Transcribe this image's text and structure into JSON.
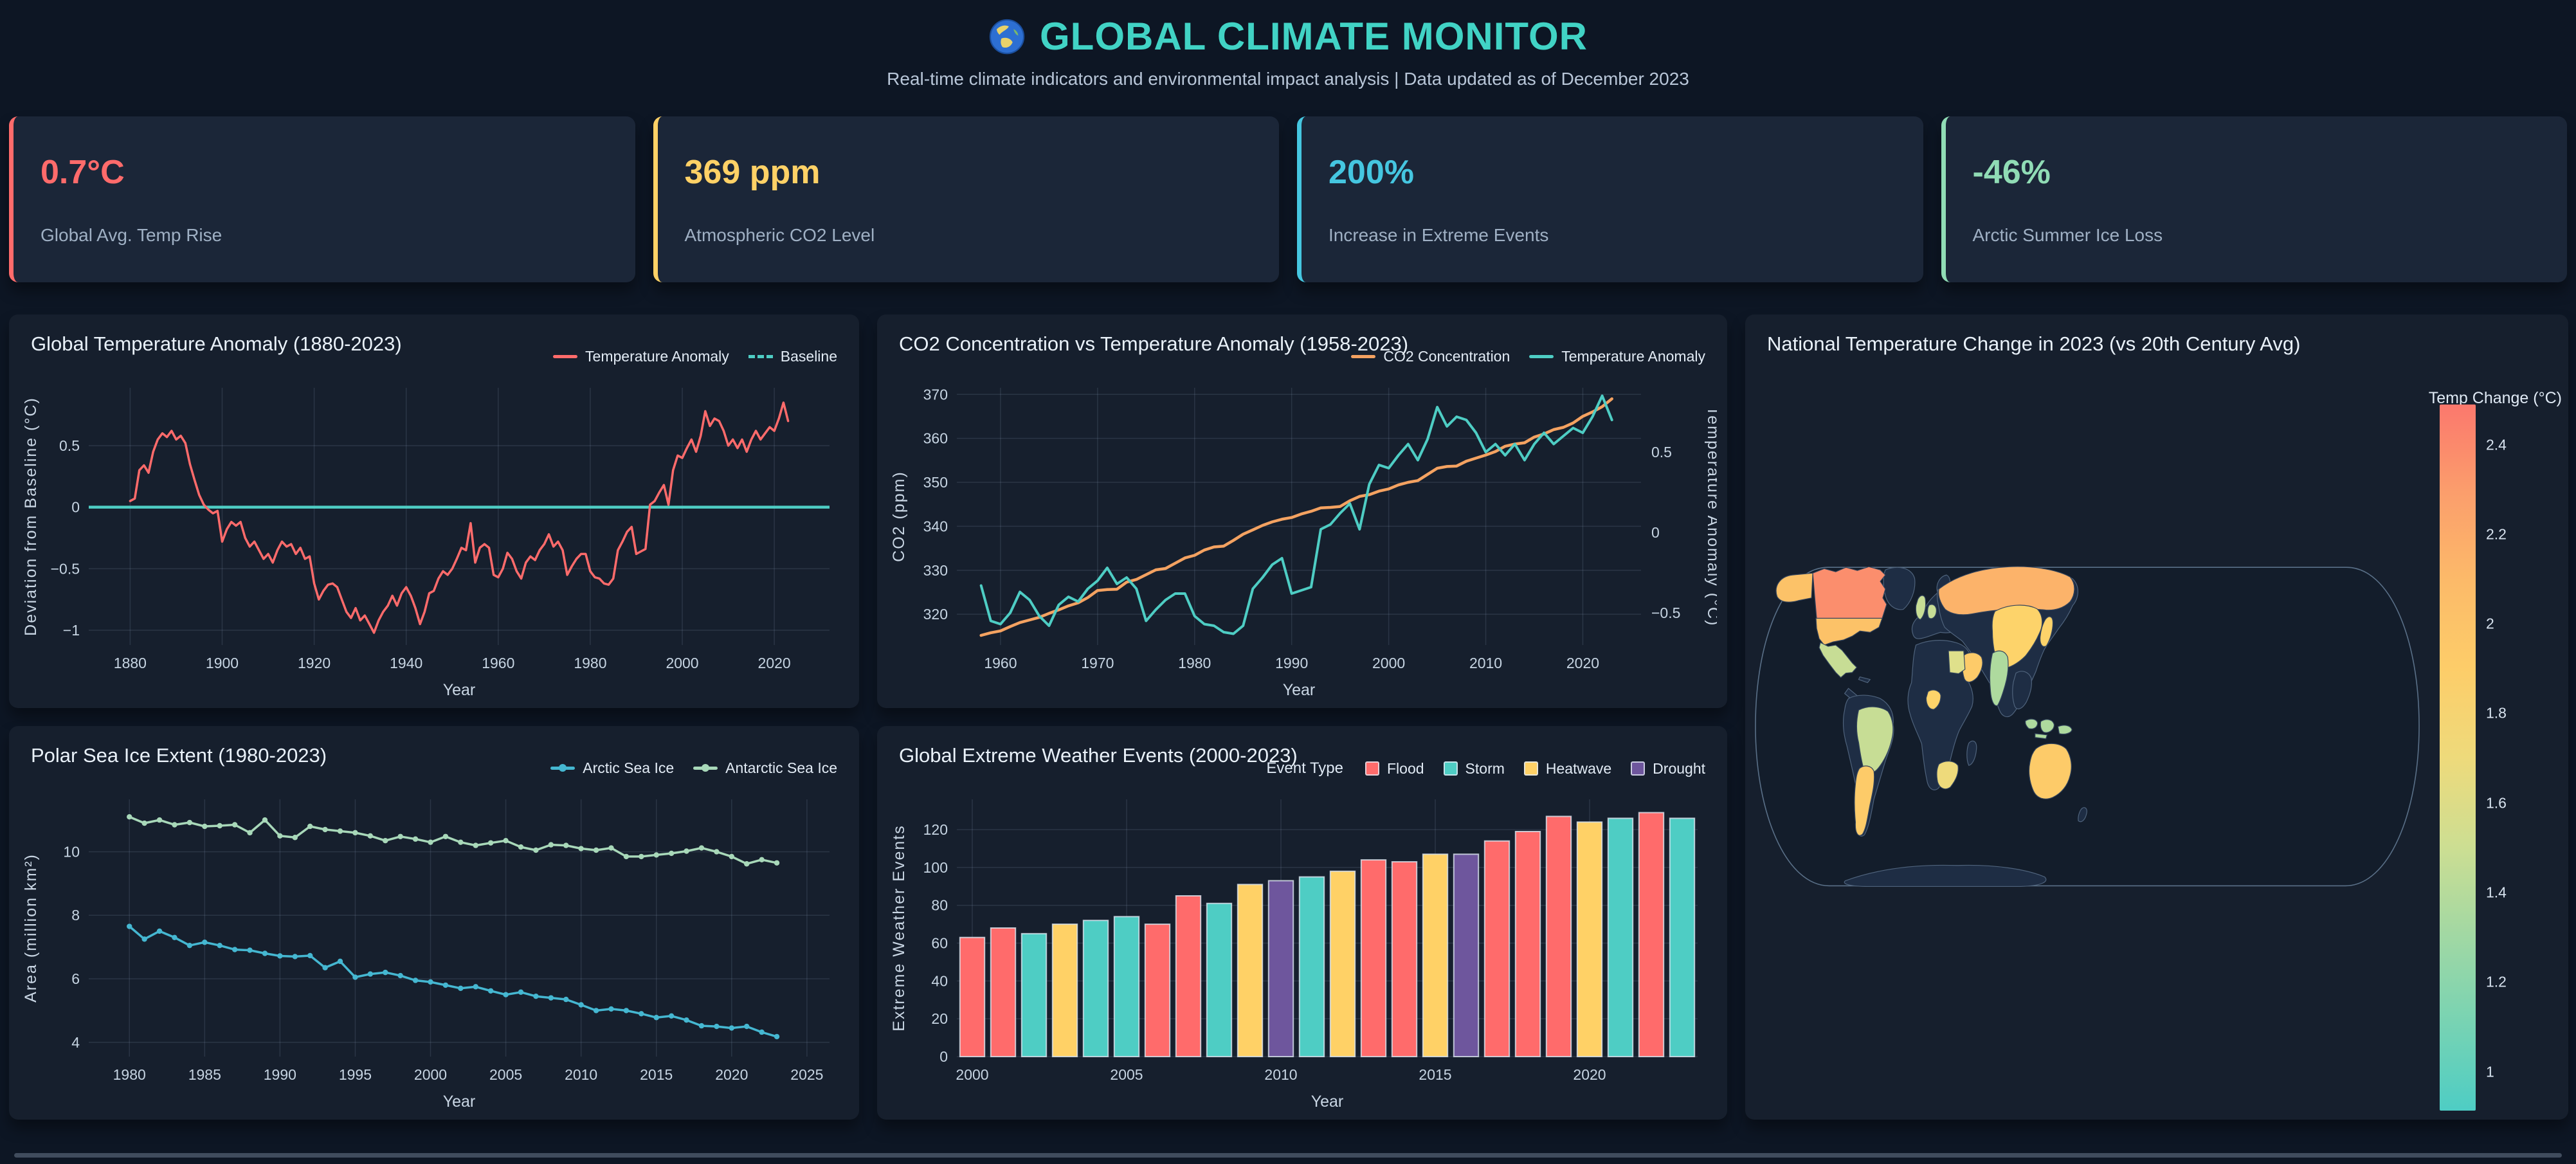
{
  "header": {
    "icon": "globe",
    "title": "GLOBAL CLIMATE MONITOR",
    "subtitle": "Real-time climate indicators and environmental impact analysis | Data updated as of December 2023"
  },
  "stats": [
    {
      "value": "0.7°C",
      "label": "Global Avg. Temp Rise",
      "color": "#ff6b6b"
    },
    {
      "value": "369 ppm",
      "label": "Atmospheric CO2 Level",
      "color": "#ffd166"
    },
    {
      "value": "200%",
      "label": "Increase in Extreme Events",
      "color": "#45c6e0"
    },
    {
      "value": "-46%",
      "label": "Arctic Summer Ice Loss",
      "color": "#90dcb5"
    }
  ],
  "chart_data": {
    "temp_anomaly": {
      "type": "line",
      "title": "Global Temperature Anomaly (1880-2023)",
      "xlabel": "Year",
      "ylabel": "Deviation from Baseline (°C)",
      "legend": [
        {
          "label": "Temperature Anomaly",
          "color": "#ff6b6b",
          "style": "solid"
        },
        {
          "label": "Baseline",
          "color": "#4ecdc4",
          "style": "dashed"
        }
      ],
      "x_start": 1880,
      "x_end": 2023,
      "xticks": [
        1880,
        1900,
        1920,
        1940,
        1960,
        1980,
        2000,
        2020
      ],
      "yticks": [
        0.5,
        0,
        -0.5,
        -1
      ],
      "xlim": [
        1871,
        2032
      ],
      "ylim": [
        -1.12,
        0.97
      ],
      "baseline": 0,
      "values": [
        0.05,
        0.07,
        0.3,
        0.34,
        0.28,
        0.45,
        0.55,
        0.6,
        0.57,
        0.62,
        0.55,
        0.58,
        0.52,
        0.35,
        0.22,
        0.1,
        0.02,
        -0.02,
        -0.05,
        -0.03,
        -0.28,
        -0.18,
        -0.12,
        -0.15,
        -0.12,
        -0.25,
        -0.32,
        -0.28,
        -0.35,
        -0.42,
        -0.38,
        -0.45,
        -0.35,
        -0.28,
        -0.32,
        -0.3,
        -0.38,
        -0.33,
        -0.42,
        -0.4,
        -0.62,
        -0.75,
        -0.68,
        -0.63,
        -0.62,
        -0.65,
        -0.75,
        -0.85,
        -0.9,
        -0.82,
        -0.92,
        -0.88,
        -0.95,
        -1.02,
        -0.92,
        -0.85,
        -0.8,
        -0.72,
        -0.8,
        -0.7,
        -0.65,
        -0.72,
        -0.82,
        -0.95,
        -0.85,
        -0.7,
        -0.68,
        -0.58,
        -0.52,
        -0.55,
        -0.5,
        -0.42,
        -0.33,
        -0.35,
        -0.13,
        -0.45,
        -0.33,
        -0.3,
        -0.33,
        -0.55,
        -0.57,
        -0.5,
        -0.37,
        -0.42,
        -0.52,
        -0.58,
        -0.45,
        -0.4,
        -0.43,
        -0.35,
        -0.3,
        -0.22,
        -0.32,
        -0.28,
        -0.35,
        -0.55,
        -0.48,
        -0.42,
        -0.38,
        -0.38,
        -0.52,
        -0.57,
        -0.58,
        -0.62,
        -0.63,
        -0.58,
        -0.35,
        -0.28,
        -0.2,
        -0.16,
        -0.38,
        -0.36,
        -0.34,
        0.02,
        0.05,
        0.12,
        0.18,
        0.02,
        0.3,
        0.42,
        0.4,
        0.48,
        0.55,
        0.45,
        0.58,
        0.78,
        0.66,
        0.72,
        0.7,
        0.62,
        0.5,
        0.55,
        0.48,
        0.55,
        0.45,
        0.55,
        0.62,
        0.55,
        0.6,
        0.65,
        0.62,
        0.72,
        0.85,
        0.7
      ]
    },
    "co2_temp": {
      "type": "line-dual",
      "title": "CO2 Concentration vs Temperature Anomaly (1958-2023)",
      "xlabel": "Year",
      "ylabel_left": "CO2 (ppm)",
      "ylabel_right": "Temperature Anomaly (°C)",
      "legend": [
        {
          "label": "CO2 Concentration",
          "color": "#f4a261"
        },
        {
          "label": "Temperature Anomaly",
          "color": "#4ecdc4"
        }
      ],
      "x_start": 1958,
      "x_end": 2023,
      "xticks": [
        1960,
        1970,
        1980,
        1990,
        2000,
        2010,
        2020
      ],
      "xlim": [
        1955.5,
        2026
      ],
      "yticks_left": [
        320,
        330,
        340,
        350,
        360,
        370
      ],
      "ylim_left": [
        313,
        371.5
      ],
      "yticks_right": [
        -0.5,
        0,
        0.5
      ],
      "ylim_right": [
        -0.7,
        0.9
      ],
      "co2": [
        315.2,
        315.8,
        316.2,
        317.2,
        318.1,
        318.7,
        319.3,
        320.2,
        321.0,
        321.9,
        322.6,
        323.8,
        325.4,
        325.6,
        325.7,
        327.3,
        327.9,
        329.0,
        330.1,
        330.4,
        331.6,
        332.8,
        333.4,
        334.6,
        335.3,
        335.5,
        336.8,
        338.2,
        339.2,
        340.2,
        341.0,
        341.6,
        342.0,
        342.8,
        343.4,
        344.2,
        344.3,
        344.5,
        345.8,
        346.8,
        347.2,
        348.0,
        348.5,
        349.4,
        350.0,
        350.4,
        351.8,
        353.2,
        353.6,
        353.7,
        354.8,
        355.5,
        356.2,
        357.0,
        358.2,
        358.7,
        359.0,
        360.3,
        361.0,
        362.0,
        362.5,
        363.5,
        365.0,
        366.0,
        367.2,
        369.0
      ],
      "temp": [
        -0.33,
        -0.55,
        -0.57,
        -0.5,
        -0.37,
        -0.42,
        -0.52,
        -0.58,
        -0.45,
        -0.4,
        -0.43,
        -0.35,
        -0.3,
        -0.22,
        -0.32,
        -0.28,
        -0.35,
        -0.55,
        -0.48,
        -0.42,
        -0.38,
        -0.38,
        -0.52,
        -0.57,
        -0.58,
        -0.62,
        -0.63,
        -0.58,
        -0.35,
        -0.28,
        -0.2,
        -0.16,
        -0.38,
        -0.36,
        -0.34,
        0.02,
        0.05,
        0.12,
        0.18,
        0.02,
        0.3,
        0.42,
        0.4,
        0.48,
        0.55,
        0.45,
        0.58,
        0.78,
        0.66,
        0.72,
        0.7,
        0.62,
        0.5,
        0.55,
        0.48,
        0.55,
        0.45,
        0.55,
        0.62,
        0.55,
        0.6,
        0.65,
        0.62,
        0.72,
        0.85,
        0.7
      ]
    },
    "choropleth": {
      "type": "choropleth",
      "title": "National Temperature Change in 2023 (vs 20th Century Avg)",
      "colorbar": {
        "title": "Temp Change (°C)",
        "min": 1,
        "max": 2.4,
        "ticks": [
          1,
          1.2,
          1.4,
          1.6,
          1.8,
          2,
          2.2,
          2.4
        ],
        "scale_colors": [
          "#4ecdc4",
          "#aeda9e",
          "#dfe08b",
          "#fdd36a",
          "#fcc268",
          "#fba36c",
          "#fb786d"
        ]
      },
      "countries": [
        {
          "name": "Canada",
          "value": 2.3
        },
        {
          "name": "United States",
          "value": 2.0
        },
        {
          "name": "Russia",
          "value": 2.1
        },
        {
          "name": "Australia",
          "value": 1.9
        },
        {
          "name": "Saudi Arabia",
          "value": 1.9
        },
        {
          "name": "Argentina",
          "value": 1.9
        },
        {
          "name": "China",
          "value": 1.8
        },
        {
          "name": "Japan",
          "value": 1.8
        },
        {
          "name": "Nigeria",
          "value": 1.8
        },
        {
          "name": "South Africa",
          "value": 1.7
        },
        {
          "name": "Egypt",
          "value": 1.6
        },
        {
          "name": "United Kingdom",
          "value": 1.5
        },
        {
          "name": "Germany",
          "value": 1.5
        },
        {
          "name": "Mexico",
          "value": 1.5
        },
        {
          "name": "Brazil",
          "value": 1.5
        },
        {
          "name": "India",
          "value": 1.4
        },
        {
          "name": "Indonesia",
          "value": 1.4
        }
      ]
    },
    "sea_ice": {
      "type": "line",
      "title": "Polar Sea Ice Extent (1980-2023)",
      "xlabel": "Year",
      "ylabel": "Area (million km²)",
      "legend": [
        {
          "label": "Arctic Sea Ice",
          "color": "#45b7d1"
        },
        {
          "label": "Antarctic Sea Ice",
          "color": "#a8d8b9"
        }
      ],
      "x_start": 1980,
      "x_end": 2023,
      "xticks": [
        1980,
        1985,
        1990,
        1995,
        2000,
        2005,
        2010,
        2015,
        2020,
        2025
      ],
      "xlim": [
        1977.3,
        2026.5
      ],
      "yticks": [
        4,
        6,
        8,
        10
      ],
      "ylim": [
        3.55,
        11.65
      ],
      "arctic": [
        7.65,
        7.25,
        7.5,
        7.3,
        7.05,
        7.15,
        7.05,
        6.92,
        6.9,
        6.8,
        6.72,
        6.7,
        6.73,
        6.35,
        6.55,
        6.05,
        6.15,
        6.2,
        6.1,
        5.95,
        5.9,
        5.8,
        5.7,
        5.75,
        5.62,
        5.5,
        5.58,
        5.45,
        5.4,
        5.35,
        5.18,
        5.0,
        5.05,
        5.0,
        4.9,
        4.78,
        4.83,
        4.7,
        4.52,
        4.5,
        4.45,
        4.5,
        4.32,
        4.18
      ],
      "antarctic": [
        11.1,
        10.9,
        11.0,
        10.85,
        10.92,
        10.8,
        10.82,
        10.85,
        10.6,
        11.0,
        10.5,
        10.45,
        10.8,
        10.7,
        10.65,
        10.6,
        10.5,
        10.35,
        10.48,
        10.4,
        10.3,
        10.48,
        10.3,
        10.2,
        10.28,
        10.35,
        10.15,
        10.05,
        10.22,
        10.2,
        10.1,
        10.05,
        10.12,
        9.85,
        9.85,
        9.9,
        9.95,
        10.02,
        10.12,
        10.0,
        9.85,
        9.62,
        9.75,
        9.65
      ]
    },
    "extreme_events": {
      "type": "bar",
      "title": "Global Extreme Weather Events (2000-2023)",
      "xlabel": "Year",
      "ylabel": "Extreme Weather Events",
      "legend_title": "Event Type",
      "legend": [
        {
          "label": "Flood",
          "color": "#ff6b6b"
        },
        {
          "label": "Storm",
          "color": "#4ecdc4"
        },
        {
          "label": "Heatwave",
          "color": "#ffd166"
        },
        {
          "label": "Drought",
          "color": "#6e569d"
        }
      ],
      "x_start": 2000,
      "x_end": 2023,
      "xtick_labels": [
        2000,
        2005,
        2010,
        2015,
        2020
      ],
      "yticks": [
        0,
        20,
        40,
        60,
        80,
        100,
        120
      ],
      "ylim": [
        0,
        136
      ],
      "values": [
        63,
        68,
        65,
        70,
        72,
        74,
        70,
        85,
        81,
        91,
        93,
        95,
        98,
        104,
        103,
        107,
        107,
        114,
        119,
        127,
        124,
        126,
        129,
        126
      ],
      "types": [
        "Flood",
        "Flood",
        "Storm",
        "Heatwave",
        "Storm",
        "Storm",
        "Flood",
        "Flood",
        "Storm",
        "Heatwave",
        "Drought",
        "Storm",
        "Heatwave",
        "Flood",
        "Flood",
        "Heatwave",
        "Drought",
        "Flood",
        "Flood",
        "Flood",
        "Heatwave",
        "Storm",
        "Flood",
        "Storm"
      ]
    }
  }
}
